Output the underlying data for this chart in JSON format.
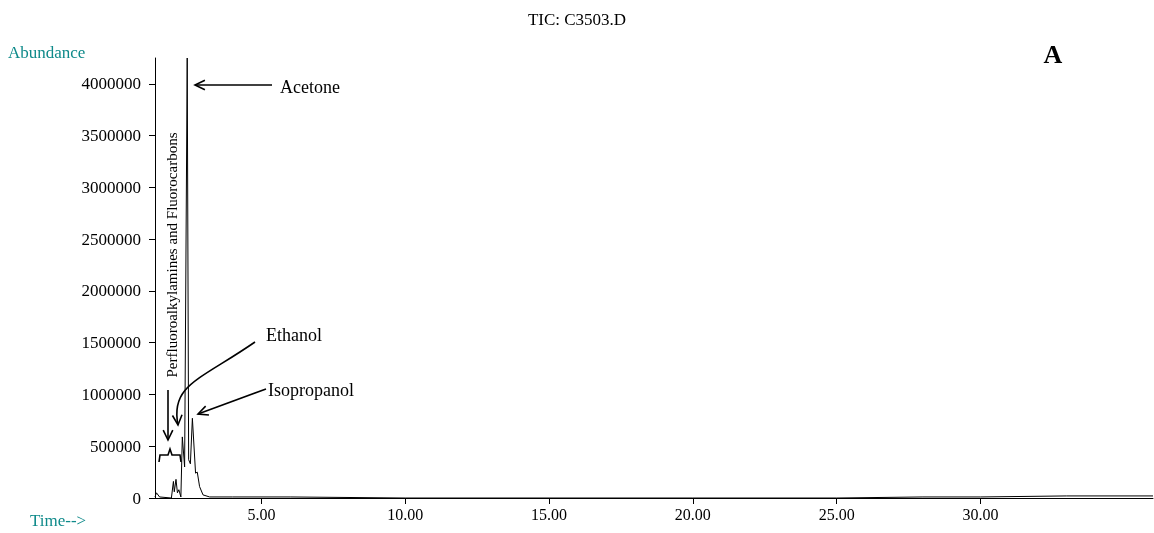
{
  "chart_data": {
    "type": "line",
    "title": "TIC: C3503.D",
    "xlabel": "Time-->",
    "ylabel": "Abundance",
    "x": [
      1.3,
      1.35,
      1.46,
      1.87,
      1.94,
      1.97,
      2.03,
      2.08,
      2.13,
      2.2,
      2.25,
      2.33,
      2.42,
      2.47,
      2.53,
      2.6,
      2.71,
      2.77,
      2.85,
      2.97,
      3.2,
      4.0,
      6.0,
      10.0,
      15.0,
      20.0,
      25.0,
      28.0,
      30.0,
      33.0,
      36.0
    ],
    "series": [
      {
        "color": "#000000",
        "values": [
          10000,
          50000,
          10000,
          0,
          160000,
          60000,
          180000,
          50000,
          80000,
          10000,
          590000,
          300000,
          4250000,
          370000,
          330000,
          770000,
          240000,
          250000,
          110000,
          30000,
          10000,
          10000,
          10000,
          0,
          0,
          0,
          0,
          10000,
          10000,
          20000,
          20000
        ]
      }
    ],
    "xlim": [
      1.3,
      36.0
    ],
    "ylim": [
      0,
      4250000
    ],
    "xticks": [
      {
        "value": 5,
        "label": "5.00"
      },
      {
        "value": 10,
        "label": "10.00"
      },
      {
        "value": 15,
        "label": "15.00"
      },
      {
        "value": 20,
        "label": "20.00"
      },
      {
        "value": 25,
        "label": "25.00"
      },
      {
        "value": 30,
        "label": "30.00"
      }
    ],
    "yticks": [
      0,
      500000,
      1000000,
      1500000,
      2000000,
      2500000,
      3000000,
      3500000,
      4000000
    ],
    "grid": false,
    "marker": "none",
    "line_style": "solid",
    "annotations": [
      "Acetone",
      "Ethanol",
      "Isopropanol",
      "Perfluoroalkylamines and Fluorocarbons",
      "A"
    ]
  }
}
